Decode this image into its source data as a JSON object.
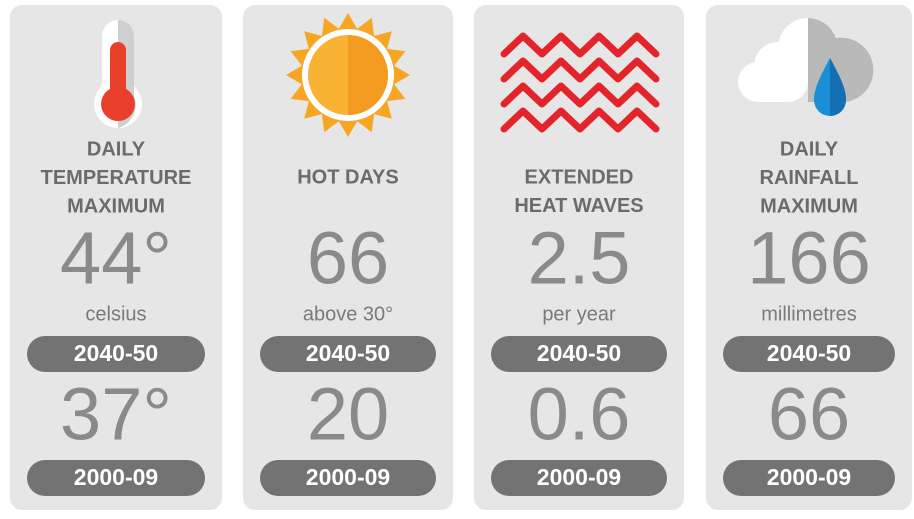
{
  "cards": [
    {
      "title": [
        "DAILY",
        "TEMPERATURE",
        "MAXIMUM"
      ],
      "future_value": "44°",
      "unit": "celsius",
      "future_period": "2040-50",
      "past_value": "37°",
      "past_period": "2000-09"
    },
    {
      "title": [
        "HOT DAYS"
      ],
      "future_value": "66",
      "unit": "above 30°",
      "future_period": "2040-50",
      "past_value": "20",
      "past_period": "2000-09"
    },
    {
      "title": [
        "EXTENDED",
        "HEAT WAVES"
      ],
      "future_value": "2.5",
      "unit": "per year",
      "future_period": "2040-50",
      "past_value": "0.6",
      "past_period": "2000-09"
    },
    {
      "title": [
        "DAILY",
        "RAINFALL",
        "MAXIMUM"
      ],
      "future_value": "166",
      "unit": "millimetres",
      "future_period": "2040-50",
      "past_value": "66",
      "past_period": "2000-09"
    }
  ]
}
